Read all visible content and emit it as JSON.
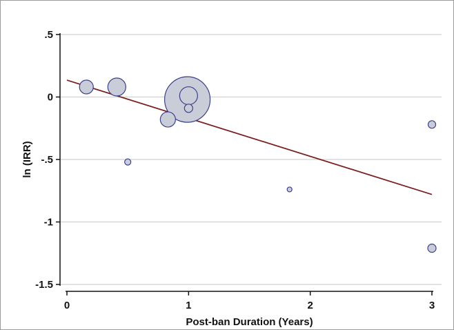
{
  "chart_data": {
    "type": "scatter",
    "title": "",
    "xlabel": "Post-ban Duration (Years)",
    "ylabel": "ln (IRR)",
    "xlim": [
      0,
      3
    ],
    "ylim": [
      -1.5,
      0.5
    ],
    "x_ticks": [
      0,
      1,
      2,
      3
    ],
    "x_tick_labels": [
      "0",
      "1",
      "2",
      "3"
    ],
    "y_ticks": [
      0.5,
      0,
      -0.5,
      -1,
      -1.5
    ],
    "y_tick_labels": [
      ".5",
      "0",
      "-.5",
      "-1",
      "-1.5"
    ],
    "grid": "horizontal",
    "legend": "none",
    "bubble_note": "marker size proportional to study weight",
    "points": [
      {
        "x": 0.16,
        "y": 0.08,
        "size": 10
      },
      {
        "x": 0.41,
        "y": 0.08,
        "size": 13
      },
      {
        "x": 0.5,
        "y": -0.52,
        "size": 4.5
      },
      {
        "x": 0.83,
        "y": -0.18,
        "size": 11
      },
      {
        "x": 0.99,
        "y": -0.02,
        "size": 33
      },
      {
        "x": 1.0,
        "y": 0.01,
        "size": 13
      },
      {
        "x": 1.0,
        "y": -0.09,
        "size": 6
      },
      {
        "x": 1.83,
        "y": -0.74,
        "size": 3.5
      },
      {
        "x": 3.0,
        "y": -0.22,
        "size": 5.5
      },
      {
        "x": 3.0,
        "y": -1.21,
        "size": 6
      }
    ],
    "fit_line": {
      "x": [
        0,
        3
      ],
      "y": [
        0.135,
        -0.78
      ]
    },
    "colors": {
      "marker_fill": "#c9cdd7",
      "marker_stroke": "#3b3f8f",
      "fit_line": "#7a1f1f",
      "grid": "#d0d0d0",
      "axis": "#111111",
      "frame": "#9a9a9a"
    }
  }
}
